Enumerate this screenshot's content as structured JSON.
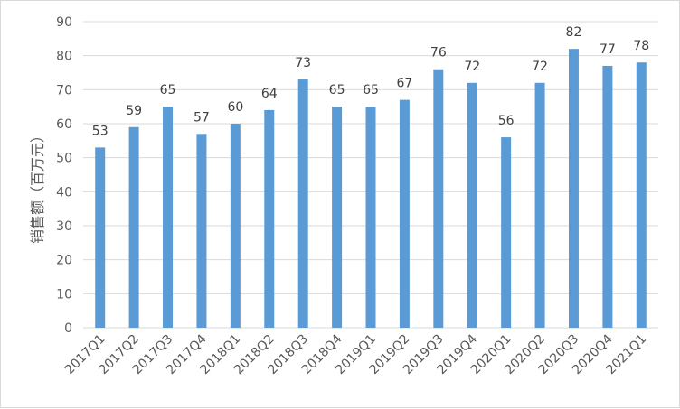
{
  "chart_data": {
    "type": "bar",
    "title": "",
    "xlabel": "",
    "ylabel": "销售额（百万元）",
    "categories": [
      "2017Q1",
      "2017Q2",
      "2017Q3",
      "2017Q4",
      "2018Q1",
      "2018Q2",
      "2018Q3",
      "2018Q4",
      "2019Q1",
      "2019Q2",
      "2019Q3",
      "2019Q4",
      "2020Q1",
      "2020Q2",
      "2020Q3",
      "2020Q4",
      "2021Q1"
    ],
    "values": [
      53,
      59,
      65,
      57,
      60,
      64,
      73,
      65,
      65,
      67,
      76,
      72,
      56,
      72,
      82,
      77,
      78
    ],
    "ylim": [
      0,
      90
    ],
    "yticks": [
      0,
      10,
      20,
      30,
      40,
      50,
      60,
      70,
      80,
      90
    ],
    "grid": true,
    "legend": "none",
    "bar_color": "#5b9bd5"
  }
}
